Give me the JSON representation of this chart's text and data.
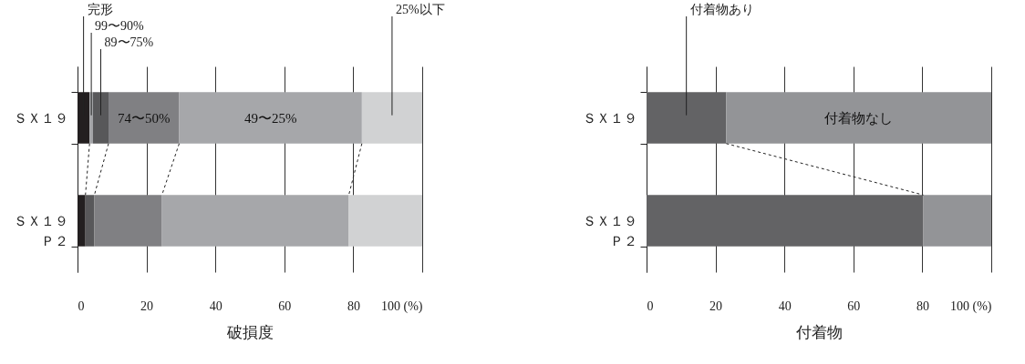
{
  "chart_data": [
    {
      "type": "bar",
      "orientation": "horizontal",
      "stacked": true,
      "xlabel": "破損度",
      "categories": [
        "ＳＸ１９",
        "ＳＸ１９Ｐ２"
      ],
      "xlim": [
        0,
        100
      ],
      "xticks": [
        0,
        20,
        40,
        60,
        80,
        {
          "value": 100,
          "label": "100 (%)"
        }
      ],
      "grid": "x",
      "series": [
        {
          "name": "完形",
          "color": "#231f20",
          "values": [
            3.5,
            2.3
          ]
        },
        {
          "name": "99〜90%",
          "color": "#a3a4a7",
          "values": [
            1,
            0
          ]
        },
        {
          "name": "89〜75%",
          "color": "#58585a",
          "values": [
            4.5,
            2.6
          ]
        },
        {
          "name": "74〜50%",
          "color": "#808083",
          "values": [
            20.5,
            19.6
          ]
        },
        {
          "name": "49〜25%",
          "color": "#a6a7aa",
          "values": [
            53,
            54.2
          ]
        },
        {
          "name": "25%以下",
          "color": "#d1d2d3",
          "values": [
            17.5,
            21.3
          ]
        }
      ]
    },
    {
      "type": "bar",
      "orientation": "horizontal",
      "stacked": true,
      "xlabel": "付着物",
      "categories": [
        "ＳＸ１９",
        "ＳＸ１９Ｐ２"
      ],
      "xlim": [
        0,
        100
      ],
      "xticks": [
        0,
        20,
        40,
        60,
        80,
        {
          "value": 100,
          "label": "100 (%)"
        }
      ],
      "grid": "x",
      "series": [
        {
          "name": "付着物あり",
          "color": "#636365",
          "values": [
            23.1,
            80.3
          ]
        },
        {
          "name": "付着物なし",
          "color": "#939497",
          "values": [
            76.9,
            19.7
          ]
        }
      ]
    }
  ]
}
